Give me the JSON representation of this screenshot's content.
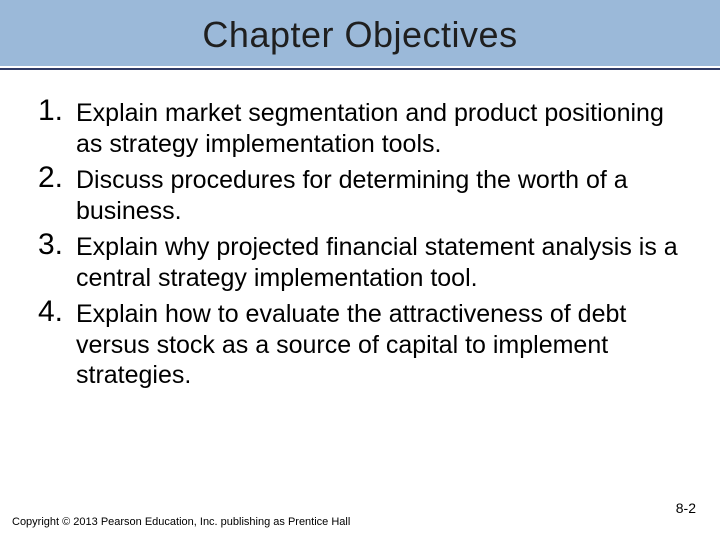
{
  "colors": {
    "title_band_bg": "#9bb9d9",
    "title_text": "#1f1f1f",
    "divider": "#2f3a66"
  },
  "title": "Chapter Objectives",
  "objectives": [
    {
      "num": "1.",
      "text": "Explain market segmentation and product positioning as strategy implementation tools."
    },
    {
      "num": "2.",
      "text": "Discuss procedures for determining the worth of a business."
    },
    {
      "num": "3.",
      "text": "Explain why projected financial statement analysis is a central strategy implementation tool."
    },
    {
      "num": "4.",
      "text": "Explain how to evaluate the attractiveness of debt versus stock as a source of capital to implement strategies."
    }
  ],
  "footer": {
    "copyright": "Copyright © 2013 Pearson Education, Inc. publishing as Prentice Hall",
    "pagenum": "8-2"
  }
}
